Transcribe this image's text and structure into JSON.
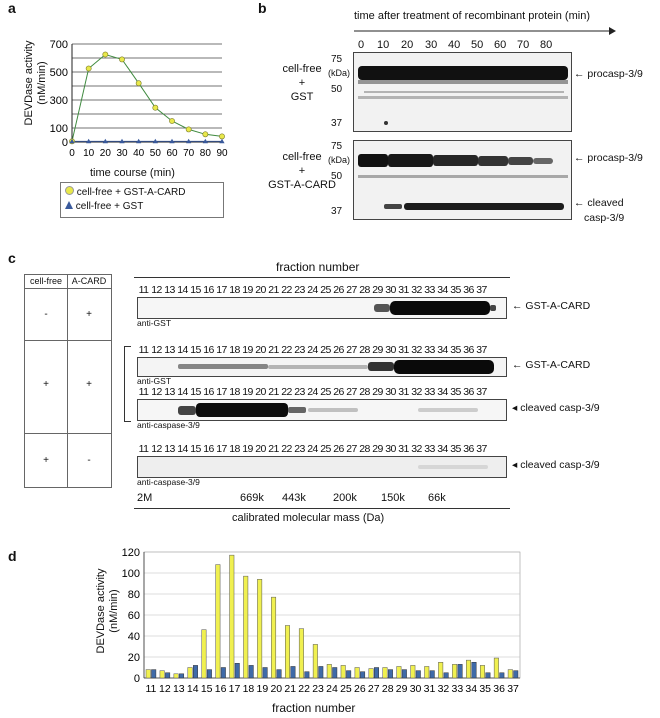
{
  "panel_a": {
    "letter": "a",
    "ylabel_line1": "DEVDase activity",
    "ylabel_line2": "(nM/min)",
    "xlabel": "time course (min)",
    "legend": [
      "cell-free + GST-A-CARD",
      "cell-free + GST"
    ],
    "colors": {
      "series1": "#e8e84a",
      "series2": "#3a5a9c",
      "line1": "#3f8a3f"
    }
  },
  "panel_b": {
    "letter": "b",
    "header": "time after treatment of recombinant protein (min)",
    "time_labels": [
      "0",
      "10",
      "20",
      "30",
      "40",
      "50",
      "60",
      "70",
      "80"
    ],
    "kda_top": [
      "75",
      "(kDa)",
      "50",
      "37"
    ],
    "kda_bottom": [
      "75",
      "(kDa)",
      "50",
      "37"
    ],
    "cond_gst": [
      "cell-free",
      "+",
      "GST"
    ],
    "cond_acard": [
      "cell-free",
      "+",
      "GST-A-CARD"
    ],
    "band_procasp": "procasp-3/9",
    "band_cleaved_1": "cleaved",
    "band_cleaved_2": "casp-3/9"
  },
  "panel_c": {
    "letter": "c",
    "title": "fraction number",
    "fractions": [
      "11",
      "12",
      "13",
      "14",
      "15",
      "16",
      "17",
      "18",
      "19",
      "20",
      "21",
      "22",
      "23",
      "24",
      "25",
      "26",
      "27",
      "28",
      "29",
      "30",
      "31",
      "32",
      "33",
      "34",
      "35",
      "36",
      "37"
    ],
    "table_headers": [
      "cell-free",
      "A-CARD"
    ],
    "table_rows": [
      [
        "-",
        "+"
      ],
      [
        "+",
        "+"
      ],
      [
        "+",
        "-"
      ]
    ],
    "blots": [
      {
        "antibody": "anti-GST",
        "label": "GST-A-CARD"
      },
      {
        "antibody": "anti-GST",
        "label": "GST-A-CARD"
      },
      {
        "antibody": "anti-caspase-3/9",
        "label": "cleaved casp-3/9"
      },
      {
        "antibody": "anti-caspase-3/9",
        "label": "cleaved casp-3/9"
      }
    ],
    "mass_markers": [
      "2M",
      "669k",
      "443k",
      "200k",
      "150k",
      "66k"
    ],
    "mass_axis_label": "calibrated molecular mass (Da)"
  },
  "panel_d": {
    "letter": "d",
    "ylabel_line1": "DEVDase activity",
    "ylabel_line2": "(nM/min)",
    "xlabel": "fraction number",
    "colors": {
      "series1": "#f0f050",
      "series2": "#3f6aa8"
    }
  },
  "chart_data": [
    {
      "type": "line",
      "panel": "a",
      "x": [
        0,
        10,
        20,
        30,
        40,
        50,
        60,
        70,
        80,
        90
      ],
      "xlim": [
        0,
        90
      ],
      "ylim": [
        0,
        700
      ],
      "xticks": [
        "0",
        "10",
        "20",
        "30",
        "40",
        "50",
        "60",
        "70",
        "80",
        "90"
      ],
      "yticks": [
        "0",
        "100",
        "300",
        "500",
        "700"
      ],
      "xlabel": "time course (min)",
      "ylabel": "DEVDase activity (nM/min)",
      "grid": true,
      "legend_position": "bottom",
      "series": [
        {
          "name": "cell-free + GST-A-CARD",
          "values": [
            5,
            525,
            625,
            590,
            420,
            245,
            150,
            90,
            55,
            40
          ]
        },
        {
          "name": "cell-free + GST",
          "values": [
            5,
            5,
            5,
            5,
            5,
            5,
            5,
            5,
            5,
            5
          ]
        }
      ]
    },
    {
      "type": "bar",
      "panel": "d",
      "categories": [
        "11",
        "12",
        "13",
        "14",
        "15",
        "16",
        "17",
        "18",
        "19",
        "20",
        "21",
        "22",
        "23",
        "24",
        "25",
        "26",
        "27",
        "28",
        "29",
        "30",
        "31",
        "32",
        "33",
        "34",
        "35",
        "36",
        "37"
      ],
      "ylim": [
        0,
        120
      ],
      "yticks": [
        "0",
        "20",
        "40",
        "60",
        "80",
        "100",
        "120"
      ],
      "xlabel": "fraction number",
      "ylabel": "DEVDase activity (nM/min)",
      "grid": true,
      "series": [
        {
          "values": [
            8,
            7,
            4,
            10,
            46,
            108,
            117,
            97,
            94,
            77,
            50,
            47,
            32,
            13,
            12,
            10,
            9,
            10,
            11,
            12,
            11,
            15,
            13,
            17,
            12,
            19,
            8
          ]
        },
        {
          "values": [
            8,
            5,
            4,
            12,
            8,
            10,
            14,
            12,
            10,
            8,
            11,
            6,
            11,
            10,
            7,
            6,
            10,
            8,
            8,
            7,
            7,
            5,
            13,
            15,
            5,
            5,
            7
          ]
        }
      ]
    }
  ]
}
